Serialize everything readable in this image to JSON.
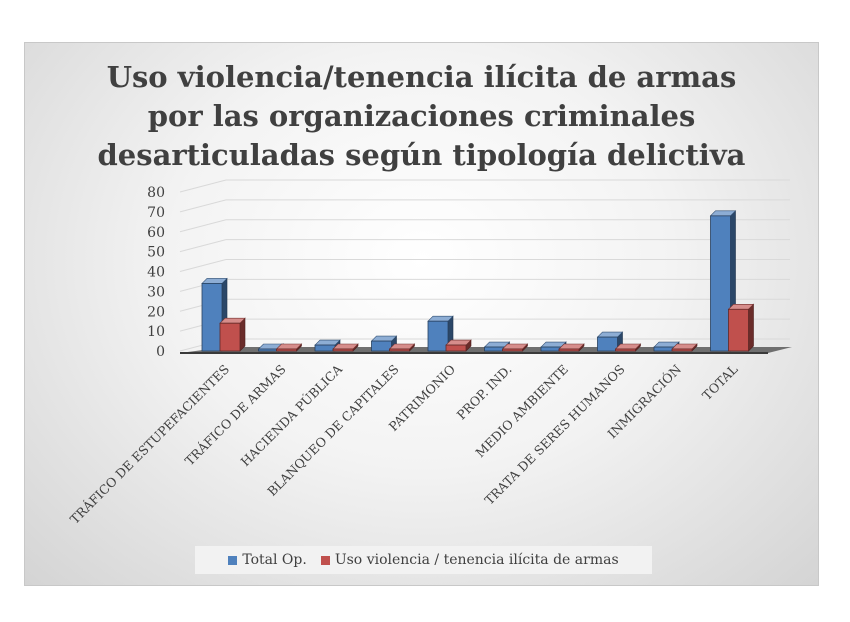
{
  "chart_data": {
    "type": "bar",
    "title_lines": [
      "Uso violencia/tenencia ilícita de armas",
      "por las organizaciones criminales",
      "desarticuladas según tipología delictiva"
    ],
    "categories": [
      "TRÁFICO DE ESTUPEFACIENTES",
      "TRÁFICO DE ARMAS",
      "HACIENDA PÚBLICA",
      "BLANQUEO DE CAPITALES",
      "PATRIMONIO",
      "PROP. IND.",
      "MEDIO AMBIENTE",
      "TRATA DE SERES HUMANOS",
      "INMIGRACIÓN",
      "TOTAL"
    ],
    "series": [
      {
        "name": "Total Op.",
        "color": "#4f81bd",
        "values": [
          34,
          0,
          3,
          5,
          15,
          2,
          2,
          7,
          2,
          68
        ]
      },
      {
        "name": "Uso violencia / tenencia ilícita de armas",
        "color": "#c0504d",
        "values": [
          14,
          0,
          1,
          1,
          3,
          0,
          0,
          1,
          0,
          21
        ]
      }
    ],
    "ylim": [
      0,
      80
    ],
    "yticks": [
      "0",
      "10",
      "20",
      "30",
      "40",
      "50",
      "60",
      "70",
      "80"
    ],
    "grid": true,
    "legend_position": "bottom"
  }
}
